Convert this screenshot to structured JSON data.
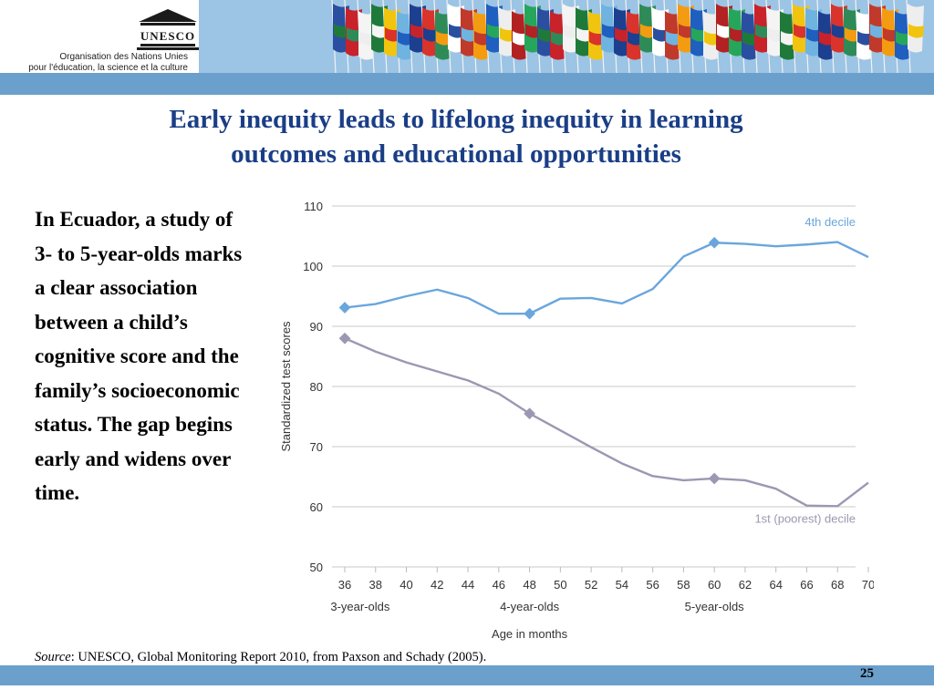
{
  "header": {
    "logo_text": "UNESCO",
    "org_line1": "Organisation des Nations Unies",
    "org_line2": "pour l'éducation, la science et la culture",
    "flag_colors": [
      "#2b4fa0",
      "#c8222a",
      "#f4f4f4",
      "#1f7a3a",
      "#f1c40f",
      "#6fb3e0",
      "#1d3f8f",
      "#d9332b",
      "#2e8b57",
      "#ffffff",
      "#c0392b",
      "#f39c12",
      "#1f5fbf",
      "#eeeeee",
      "#b22222",
      "#26a65b"
    ]
  },
  "slide": {
    "title_line1": "Early inequity leads to lifelong inequity in learning",
    "title_line2": "outcomes and educational opportunities",
    "body_text": "In Ecuador, a study of 3- to 5-year-olds marks a clear association between a child’s cognitive score and the family’s socioeconomic status. The gap begins early and widens over time.",
    "source_label": "Source",
    "source_text": ": UNESCO, Global Monitoring Report 2010, from Paxson and Schady (2005).",
    "page_number": "25"
  },
  "chart_data": {
    "type": "line",
    "x": [
      36,
      38,
      40,
      42,
      44,
      46,
      48,
      50,
      52,
      54,
      56,
      58,
      60,
      62,
      64,
      66,
      68,
      70
    ],
    "x_ticks": [
      "36",
      "38",
      "40",
      "42",
      "44",
      "46",
      "48",
      "50",
      "52",
      "54",
      "56",
      "58",
      "60",
      "62",
      "64",
      "66",
      "68",
      "70"
    ],
    "xlim": [
      36,
      70
    ],
    "ylim": [
      50,
      110
    ],
    "y_ticks": [
      50,
      60,
      70,
      80,
      90,
      100,
      110
    ],
    "ylabel": "Standardized test scores",
    "xlabel": "Age in months",
    "age_groups": [
      {
        "label": "3-year-olds",
        "at": 37
      },
      {
        "label": "4-year-olds",
        "at": 48
      },
      {
        "label": "5-year-olds",
        "at": 60
      }
    ],
    "grid": true,
    "series": [
      {
        "name": "4th decile",
        "color": "#6aa6dc",
        "values": [
          93.1,
          93.7,
          95.0,
          96.1,
          94.7,
          92.1,
          92.1,
          94.6,
          94.7,
          93.8,
          96.2,
          101.6,
          103.9,
          103.7,
          103.3,
          103.6,
          104.0,
          101.5
        ],
        "markers_at": [
          36,
          48,
          60
        ]
      },
      {
        "name": "1st (poorest) decile",
        "color": "#9c97b2",
        "values": [
          88.0,
          85.8,
          84.0,
          82.5,
          81.0,
          78.8,
          75.5,
          72.7,
          69.9,
          67.2,
          65.1,
          64.4,
          64.7,
          64.4,
          63.0,
          60.2,
          60.1,
          64.0
        ],
        "markers_at": [
          36,
          48,
          60
        ]
      }
    ]
  }
}
